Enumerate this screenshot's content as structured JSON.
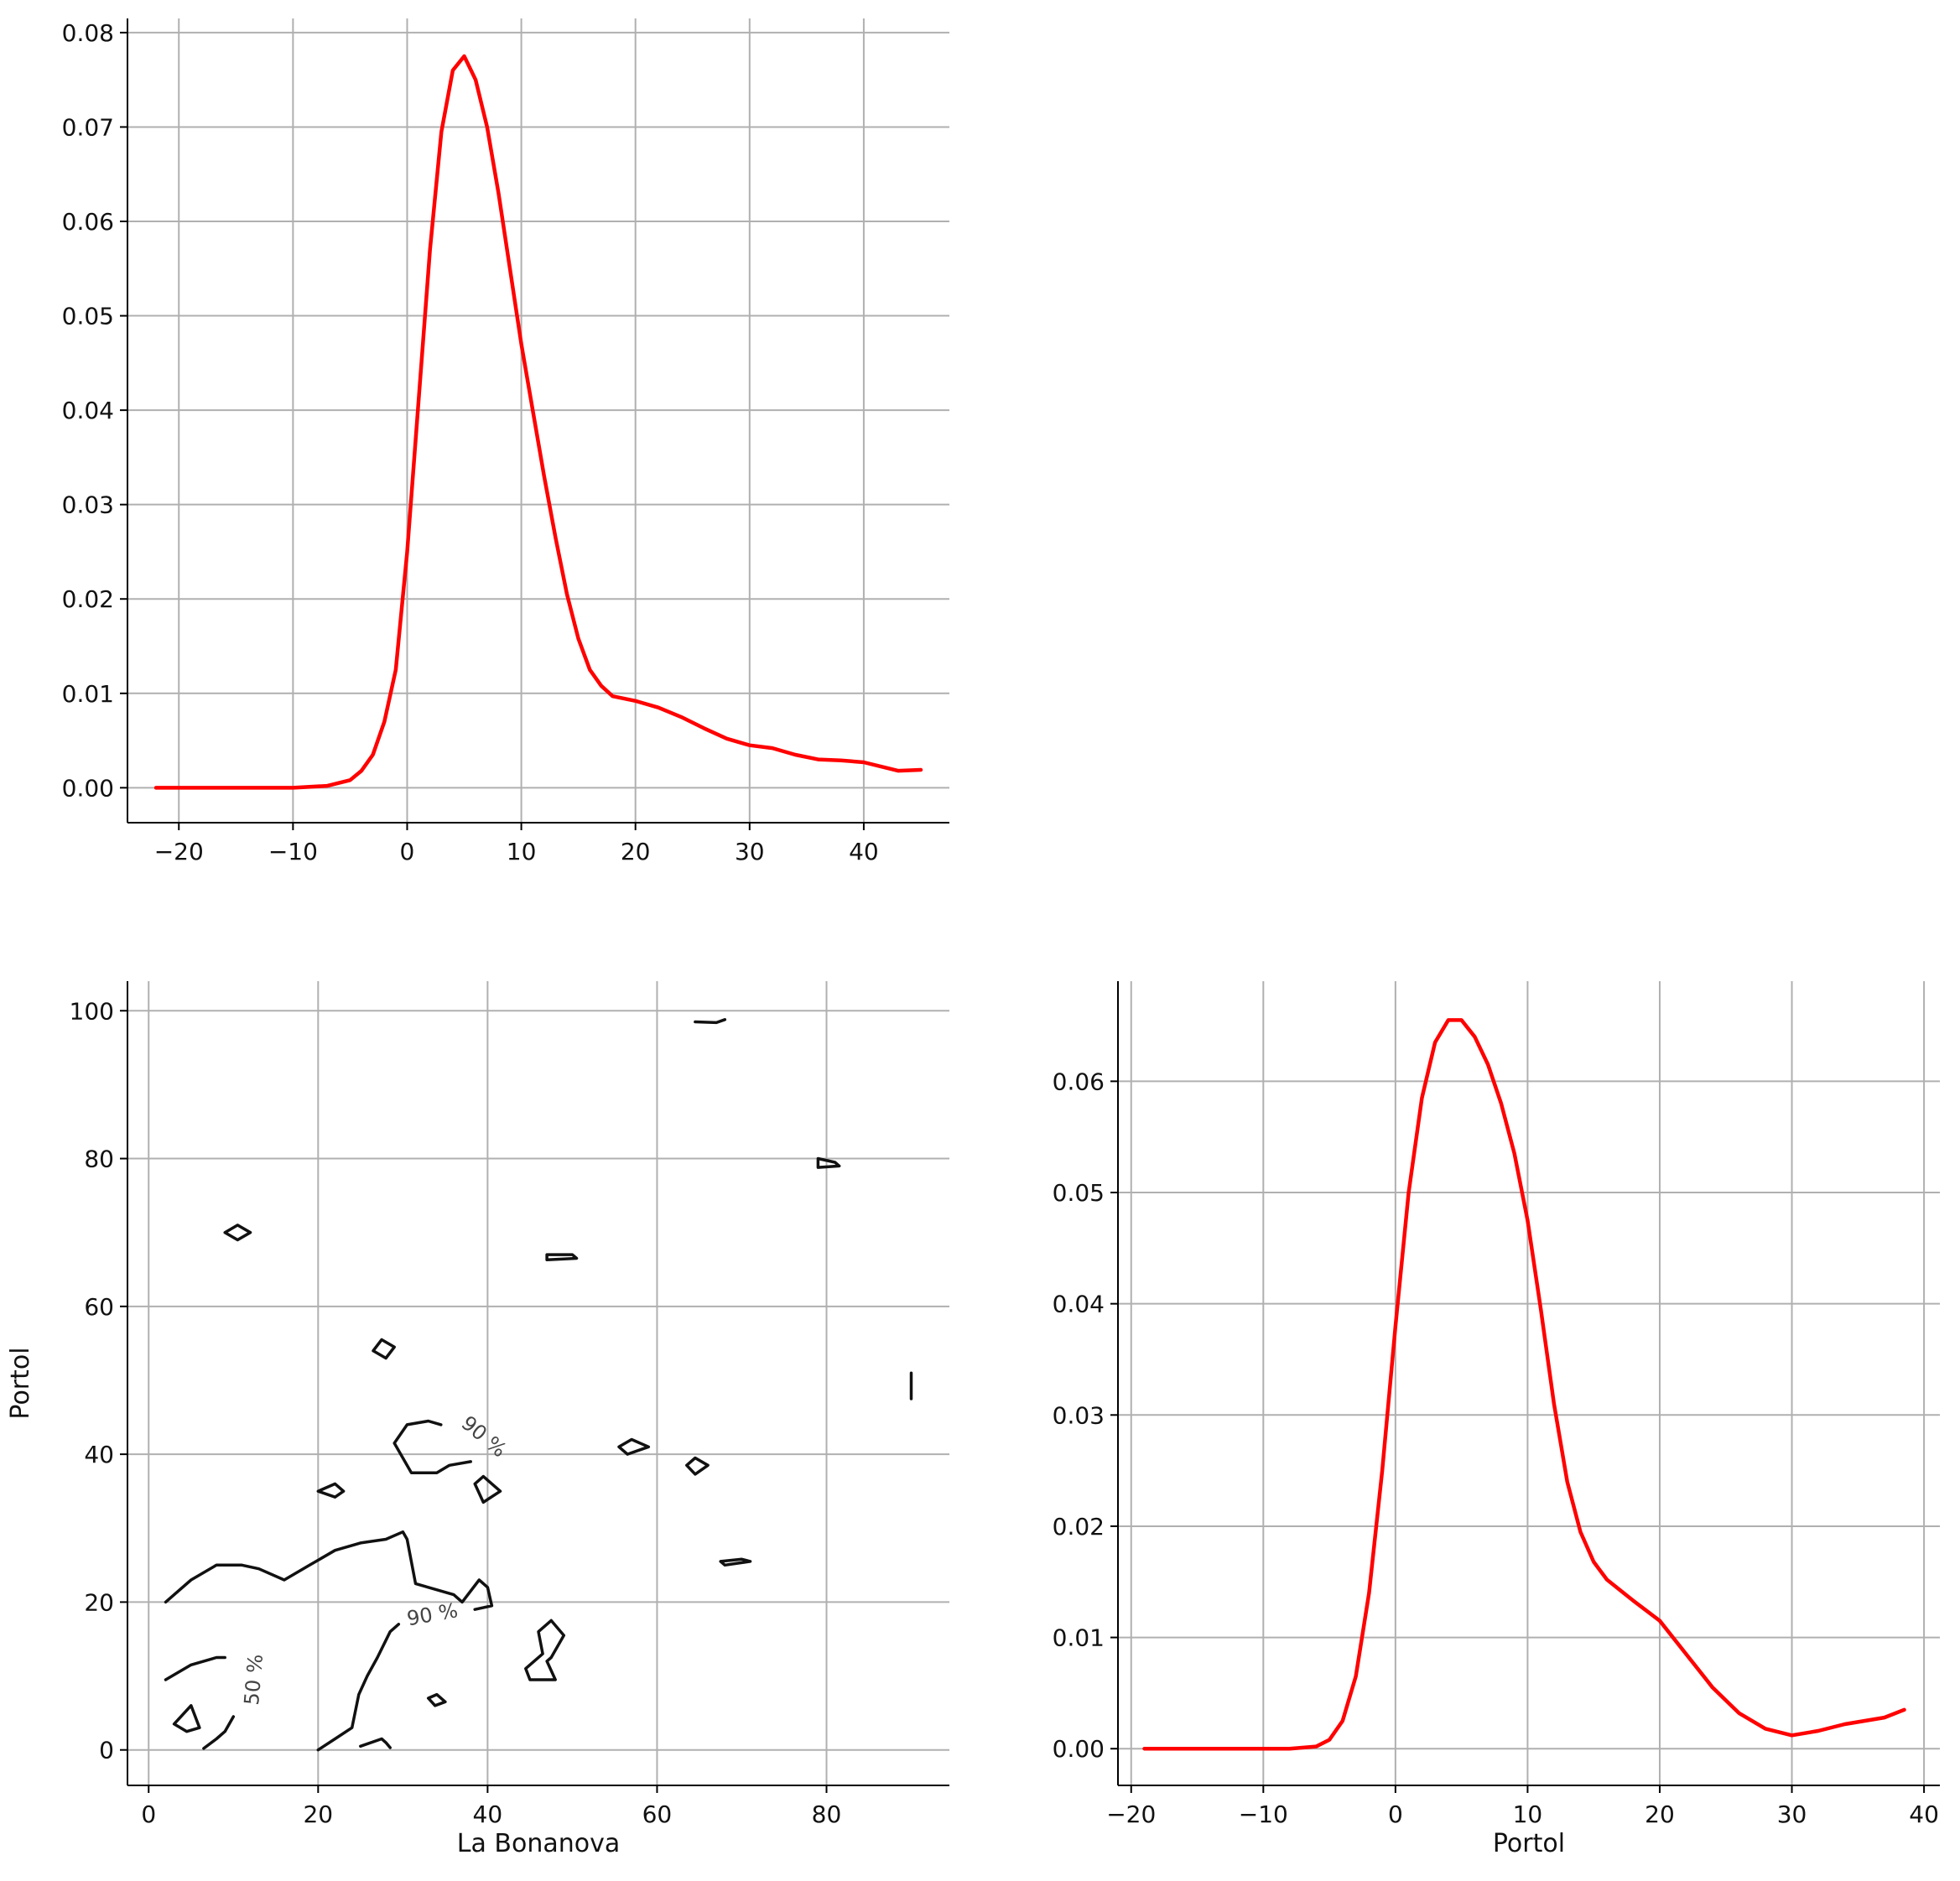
{
  "chart_data": [
    {
      "type": "line",
      "panel": "top-left",
      "title": "",
      "xlabel": "",
      "ylabel": "",
      "xlim": [
        -24.5,
        47.5
      ],
      "ylim": [
        -0.0037,
        0.0815
      ],
      "xticks": [
        -20,
        -10,
        0,
        10,
        20,
        30,
        40
      ],
      "yticks": [
        0,
        0.01,
        0.02,
        0.03,
        0.04,
        0.05,
        0.06,
        0.07,
        0.08
      ],
      "xtick_labels": [
        "−20",
        "−10",
        "0",
        "10",
        "20",
        "30",
        "40"
      ],
      "ytick_labels": [
        "0.00",
        "0.01",
        "0.02",
        "0.03",
        "0.04",
        "0.05",
        "0.06",
        "0.07",
        "0.08"
      ],
      "grid": true,
      "series": [
        {
          "color": "#ff0000",
          "x": [
            -22,
            -10,
            -7,
            -5,
            -4,
            -3,
            -2,
            -1,
            0,
            1,
            2,
            3,
            4,
            5,
            6,
            7,
            8,
            9,
            10,
            11,
            12,
            13,
            14,
            15,
            16,
            17,
            18,
            20,
            22,
            24,
            26,
            28,
            30,
            32,
            34,
            36,
            38,
            40,
            42,
            43,
            45
          ],
          "y": [
            0,
            0,
            0.0002,
            0.0008,
            0.0018,
            0.0035,
            0.007,
            0.0125,
            0.025,
            0.041,
            0.057,
            0.0695,
            0.076,
            0.0775,
            0.075,
            0.07,
            0.063,
            0.055,
            0.047,
            0.04,
            0.033,
            0.0265,
            0.0205,
            0.0158,
            0.0125,
            0.0108,
            0.0097,
            0.0092,
            0.0085,
            0.0075,
            0.0063,
            0.0052,
            0.0045,
            0.0042,
            0.0035,
            0.003,
            0.0029,
            0.0027,
            0.0021,
            0.0018,
            0.0019
          ]
        }
      ]
    },
    {
      "type": "contour",
      "panel": "bottom-left",
      "title": "",
      "xlabel": "La Bonanova",
      "ylabel": "Portol",
      "xlim": [
        -2.5,
        94.5
      ],
      "ylim": [
        -4.8,
        104
      ],
      "xticks": [
        0,
        20,
        40,
        60,
        80
      ],
      "yticks": [
        0,
        20,
        40,
        60,
        80,
        100
      ],
      "xtick_labels": [
        "0",
        "20",
        "40",
        "60",
        "80"
      ],
      "ytick_labels": [
        "0",
        "20",
        "40",
        "60",
        "80",
        "100"
      ],
      "grid": true,
      "line_color": "#111111",
      "level_labels": [
        {
          "text": "90 %",
          "x": 39.5,
          "y": 42.3,
          "rotation": 40
        },
        {
          "text": "90 %",
          "x": 33.5,
          "y": 18.2,
          "rotation": -10
        },
        {
          "text": "50 %",
          "x": 12.5,
          "y": 9.5,
          "rotation": -85
        }
      ],
      "paths": [
        {
          "closed": false,
          "points": [
            [
              2,
              20
            ],
            [
              5,
              23
            ],
            [
              8,
              25
            ],
            [
              11,
              25
            ],
            [
              13,
              24.5
            ],
            [
              16,
              23
            ],
            [
              19,
              25
            ],
            [
              22,
              27
            ],
            [
              25,
              28
            ],
            [
              28,
              28.5
            ],
            [
              30,
              29.5
            ],
            [
              30.5,
              28.5
            ],
            [
              31.5,
              22.5
            ],
            [
              36,
              21
            ],
            [
              37,
              20
            ],
            [
              39,
              23
            ],
            [
              40,
              22
            ],
            [
              40.5,
              19.5
            ],
            [
              38.5,
              19
            ]
          ]
        },
        {
          "closed": false,
          "points": [
            [
              38,
              39
            ],
            [
              35.5,
              38.5
            ],
            [
              34,
              37.5
            ],
            [
              31,
              37.5
            ],
            [
              29,
              41.5
            ],
            [
              30.5,
              44
            ],
            [
              33,
              44.5
            ],
            [
              34.5,
              44
            ]
          ]
        },
        {
          "closed": false,
          "points": [
            [
              20,
              0
            ],
            [
              22,
              1.5
            ],
            [
              24,
              3
            ],
            [
              24.8,
              7.5
            ],
            [
              25.8,
              10
            ],
            [
              27,
              12.5
            ],
            [
              28.5,
              16
            ],
            [
              29.5,
              17
            ]
          ]
        },
        {
          "closed": false,
          "points": [
            [
              2,
              9.5
            ],
            [
              5,
              11.5
            ],
            [
              8,
              12.5
            ],
            [
              9,
              12.5
            ]
          ]
        },
        {
          "closed": false,
          "points": [
            [
              6.5,
              0.2
            ],
            [
              8,
              1.5
            ],
            [
              9,
              2.5
            ],
            [
              10,
              4.5
            ]
          ]
        },
        {
          "closed": false,
          "points": [
            [
              25,
              0.5
            ],
            [
              27.5,
              1.5
            ],
            [
              28,
              1
            ],
            [
              28.5,
              0.3
            ]
          ]
        },
        {
          "closed": true,
          "points": [
            [
              3,
              3.5
            ],
            [
              5,
              6
            ],
            [
              6,
              3
            ],
            [
              4.5,
              2.5
            ]
          ]
        },
        {
          "closed": true,
          "points": [
            [
              9,
              70
            ],
            [
              10.5,
              71
            ],
            [
              12,
              70
            ],
            [
              10.5,
              69
            ]
          ]
        },
        {
          "closed": true,
          "points": [
            [
              26.5,
              54
            ],
            [
              27.5,
              55.5
            ],
            [
              29,
              54.5
            ],
            [
              28,
              53
            ]
          ]
        },
        {
          "closed": true,
          "points": [
            [
              20,
              35
            ],
            [
              22,
              36
            ],
            [
              23,
              35
            ],
            [
              22,
              34.2
            ]
          ]
        },
        {
          "closed": true,
          "points": [
            [
              38.5,
              36
            ],
            [
              39.5,
              37
            ],
            [
              41.5,
              35
            ],
            [
              39.5,
              33.5
            ]
          ]
        },
        {
          "closed": true,
          "points": [
            [
              33,
              7
            ],
            [
              34,
              7.5
            ],
            [
              35,
              6.5
            ],
            [
              33.8,
              6
            ]
          ]
        },
        {
          "closed": true,
          "points": [
            [
              46,
              16
            ],
            [
              47.5,
              17.5
            ],
            [
              49,
              15.5
            ],
            [
              47.5,
              12.5
            ],
            [
              47,
              12
            ],
            [
              48,
              9.5
            ],
            [
              45,
              9.5
            ],
            [
              44.5,
              11
            ],
            [
              46.5,
              13
            ]
          ]
        },
        {
          "closed": true,
          "points": [
            [
              47,
              67
            ],
            [
              50,
              67
            ],
            [
              50.5,
              66.5
            ],
            [
              47,
              66.3
            ]
          ]
        },
        {
          "closed": true,
          "points": [
            [
              55.5,
              41
            ],
            [
              57,
              42
            ],
            [
              59,
              41
            ],
            [
              56.5,
              40
            ]
          ]
        },
        {
          "closed": true,
          "points": [
            [
              63.5,
              38.5
            ],
            [
              64.5,
              39.5
            ],
            [
              66,
              38.5
            ],
            [
              64.5,
              37.3
            ]
          ]
        },
        {
          "closed": true,
          "points": [
            [
              67.5,
              25.5
            ],
            [
              70,
              25.8
            ],
            [
              71,
              25.5
            ],
            [
              68,
              25
            ]
          ]
        },
        {
          "closed": true,
          "points": [
            [
              79,
              80
            ],
            [
              81,
              79.5
            ],
            [
              81.5,
              79
            ],
            [
              79,
              78.8
            ]
          ]
        },
        {
          "closed": false,
          "points": [
            [
              64.5,
              98.5
            ],
            [
              67,
              98.4
            ],
            [
              68,
              98.8
            ]
          ]
        },
        {
          "closed": false,
          "points": [
            [
              90,
              51
            ],
            [
              90,
              47.5
            ]
          ]
        }
      ]
    },
    {
      "type": "line",
      "panel": "bottom-right",
      "title": "",
      "xlabel": "Portol",
      "ylabel": "",
      "xlim": [
        -21,
        41.2
      ],
      "ylim": [
        -0.0033,
        0.069
      ],
      "xticks": [
        -20,
        -10,
        0,
        10,
        20,
        30,
        40
      ],
      "yticks": [
        0,
        0.01,
        0.02,
        0.03,
        0.04,
        0.05,
        0.06
      ],
      "xtick_labels": [
        "−20",
        "−10",
        "0",
        "10",
        "20",
        "30",
        "40"
      ],
      "ytick_labels": [
        "0.00",
        "0.01",
        "0.02",
        "0.03",
        "0.04",
        "0.05",
        "0.06"
      ],
      "grid": true,
      "series": [
        {
          "color": "#ff0000",
          "x": [
            -19,
            -8,
            -6,
            -5,
            -4,
            -3,
            -2,
            -1,
            0,
            1,
            2,
            3,
            4,
            5,
            6,
            7,
            8,
            9,
            10,
            11,
            12,
            13,
            14,
            15,
            16,
            18,
            20,
            22,
            24,
            26,
            28,
            30,
            32,
            34,
            37,
            38.5
          ],
          "y": [
            0,
            0,
            0.0002,
            0.0008,
            0.0025,
            0.0065,
            0.014,
            0.025,
            0.038,
            0.05,
            0.0585,
            0.0635,
            0.0655,
            0.0655,
            0.064,
            0.0615,
            0.058,
            0.0535,
            0.0475,
            0.0395,
            0.031,
            0.024,
            0.0195,
            0.0168,
            0.0152,
            0.0133,
            0.0115,
            0.0085,
            0.0055,
            0.0032,
            0.0018,
            0.0012,
            0.0016,
            0.0022,
            0.0028,
            0.0035
          ]
        }
      ]
    }
  ]
}
